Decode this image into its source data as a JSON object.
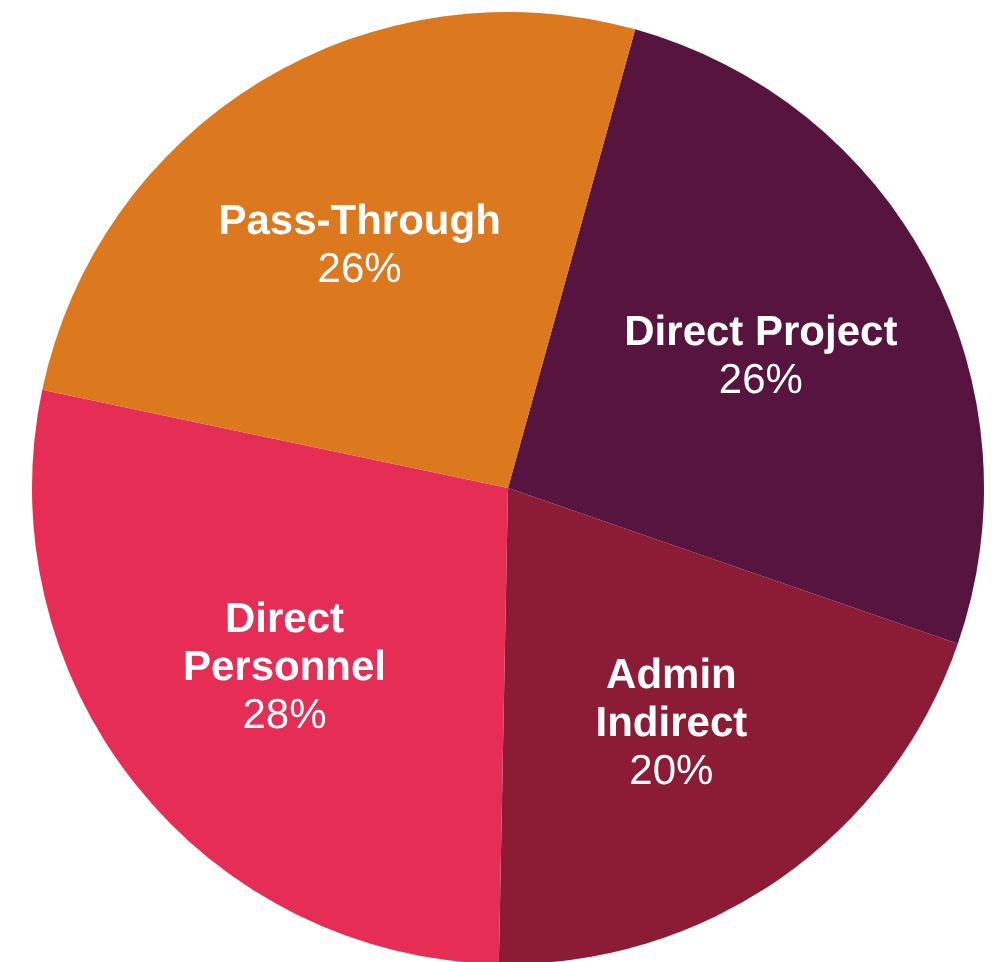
{
  "chart_data": {
    "type": "pie",
    "categories": [
      "Direct Project",
      "Admin Indirect",
      "Direct Personnel",
      "Pass-Through"
    ],
    "values": [
      26,
      20,
      28,
      26
    ],
    "colors": [
      "#57143e",
      "#8c1b36",
      "#e52d55",
      "#dc781e"
    ],
    "value_labels": [
      "26%",
      "20%",
      "28%",
      "26%"
    ],
    "legend": false
  }
}
